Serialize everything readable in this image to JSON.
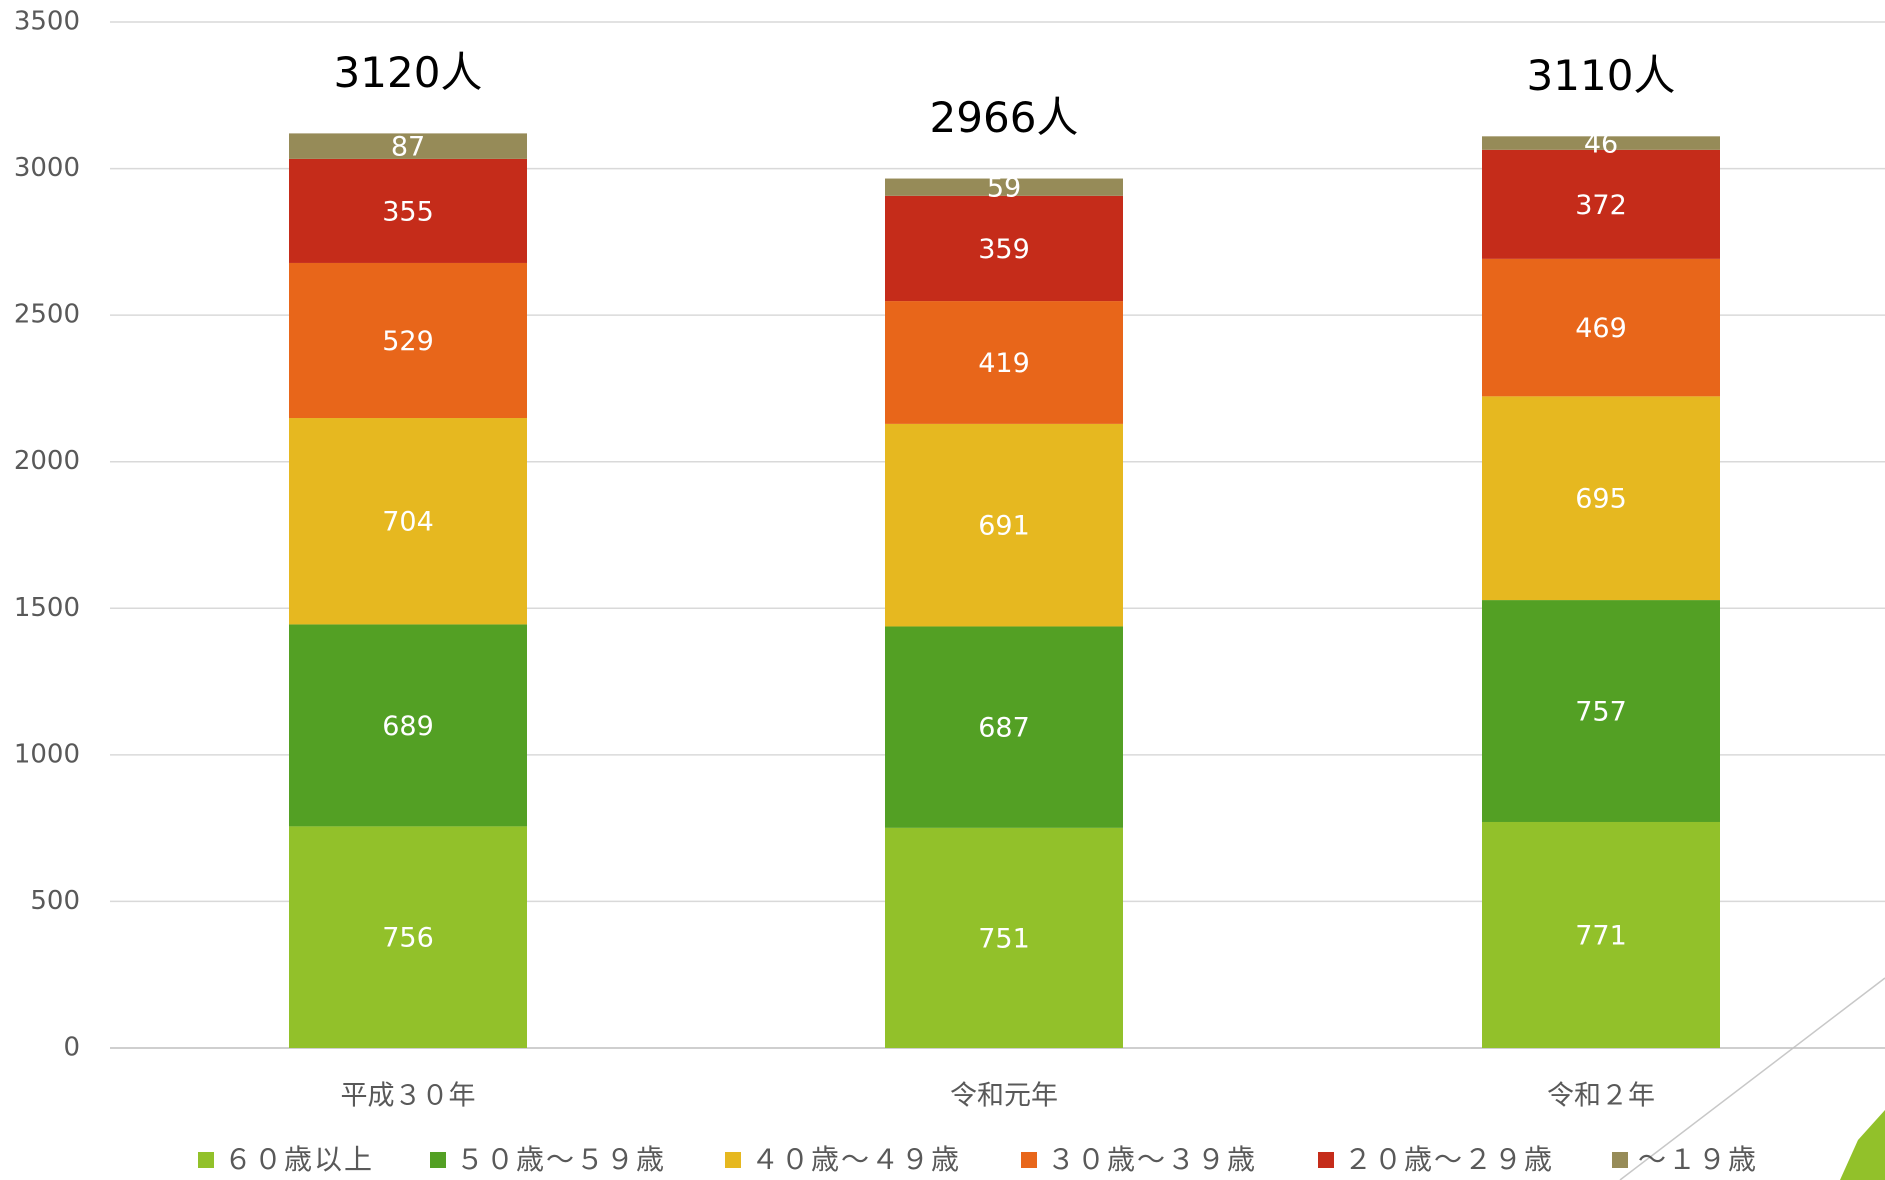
{
  "chart_data": {
    "type": "stacked_bar",
    "categories": [
      "平成３０年",
      "令和元年",
      "令和２年"
    ],
    "series": [
      {
        "name": "６０歳以上",
        "color": "#92c12a",
        "values": [
          756,
          751,
          771
        ]
      },
      {
        "name": "５０歳～５９歳",
        "color": "#53a024",
        "values": [
          689,
          687,
          757
        ]
      },
      {
        "name": "４０歳～４９歳",
        "color": "#e6b820",
        "values": [
          704,
          691,
          695
        ]
      },
      {
        "name": "３０歳～３９歳",
        "color": "#e8661a",
        "values": [
          529,
          419,
          469
        ]
      },
      {
        "name": "２０歳～２９歳",
        "color": "#c52c1a",
        "values": [
          355,
          359,
          372
        ]
      },
      {
        "name": "～１９歳",
        "color": "#968b58",
        "values": [
          87,
          59,
          46
        ]
      }
    ],
    "total_labels": [
      "3120人",
      "2966人",
      "3110人"
    ],
    "ylim": [
      0,
      3500
    ],
    "yticks": [
      0,
      500,
      1000,
      1500,
      2000,
      2500,
      3000,
      3500
    ],
    "grid": true,
    "legend": "bottom"
  }
}
